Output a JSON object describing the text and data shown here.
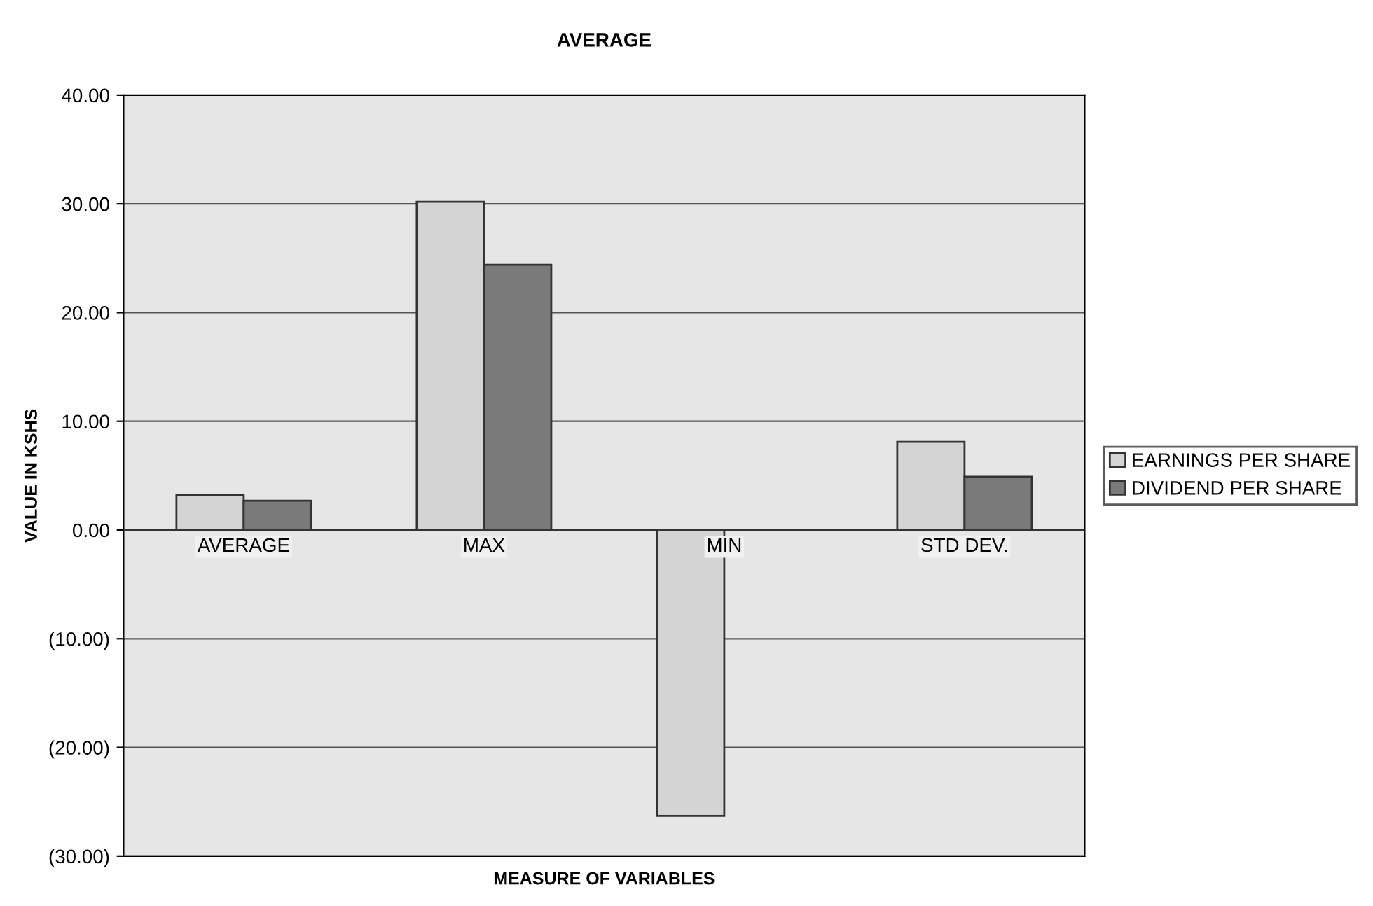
{
  "chart_data": {
    "type": "bar",
    "title": "AVERAGE",
    "xlabel": "MEASURE OF VARIABLES",
    "ylabel": "VALUE IN KSHS",
    "categories": [
      "AVERAGE",
      "MAX",
      "MIN",
      "STD DEV."
    ],
    "series": [
      {
        "name": "EARNINGS PER SHARE",
        "color": "#d4d4d4",
        "values": [
          3.2,
          30.2,
          -26.3,
          8.1
        ]
      },
      {
        "name": "DIVIDEND PER SHARE",
        "color": "#7a7a7a",
        "values": [
          2.7,
          24.4,
          0,
          4.9
        ]
      }
    ],
    "ylim": [
      -30,
      40
    ],
    "yticks": [
      {
        "value": -30,
        "label": "(30.00)"
      },
      {
        "value": -20,
        "label": "(20.00)"
      },
      {
        "value": -10,
        "label": "(10.00)"
      },
      {
        "value": 0,
        "label": "0.00"
      },
      {
        "value": 10,
        "label": "10.00"
      },
      {
        "value": 20,
        "label": "20.00"
      },
      {
        "value": 30,
        "label": "30.00"
      },
      {
        "value": 40,
        "label": "40.00"
      }
    ],
    "grid": "y",
    "legend": "right"
  }
}
